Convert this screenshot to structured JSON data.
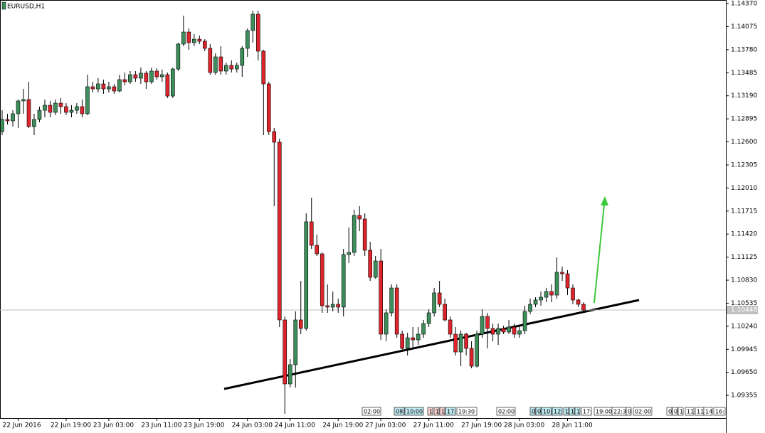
{
  "chart_data": {
    "type": "candlestick",
    "title": "EURUSD,H1",
    "ylim": [
      1.09065,
      1.14416
    ],
    "yticks": [
      {
        "value": 1.1437,
        "label": "1.14370"
      },
      1.14075,
      {
        "value": 1.1378,
        "label": "1.13780"
      },
      1.13485,
      {
        "value": 1.1319,
        "label": "1.13190"
      },
      1.12895,
      {
        "value": 1.126,
        "label": "1.12600"
      },
      1.12305,
      {
        "value": 1.1201,
        "label": "1.12010"
      },
      1.11715,
      {
        "value": 1.1142,
        "label": "1.11420"
      },
      1.11125,
      {
        "value": 1.1083,
        "label": "1.10830"
      },
      1.10535,
      {
        "value": 1.1024,
        "label": "1.10240"
      },
      1.09945,
      {
        "value": 1.0965,
        "label": "1.09650"
      },
      1.09355
    ],
    "current_price": 1.10448,
    "colors": {
      "up": "#3c8f5b",
      "down": "#e0242c"
    },
    "categories": [
      null,
      null,
      null,
      "22 Jun 2016",
      null,
      null,
      null,
      null,
      null,
      null,
      null,
      null,
      "22 Jun 19:00",
      null,
      null,
      null,
      null,
      null,
      null,
      null,
      "23 Jun 03:00",
      null,
      null,
      null,
      null,
      null,
      null,
      null,
      null,
      "23 Jun 11:00",
      null,
      null,
      null,
      null,
      null,
      null,
      null,
      "23 Jun 19:00",
      null,
      null,
      null,
      null,
      null,
      null,
      null,
      null,
      "24 Jun 03:00",
      null,
      null,
      null,
      null,
      null,
      null,
      null,
      "24 Jun 11:00",
      null,
      null,
      null,
      null,
      null,
      null,
      null,
      null,
      "24 Jun 19:00",
      null,
      null,
      null,
      null,
      null,
      null,
      null,
      "27 Jun 03:00",
      null,
      null,
      null,
      null,
      null,
      null,
      null,
      null,
      "27 Jun 11:00",
      null,
      null,
      null,
      null,
      null,
      null,
      null,
      null,
      "27 Jun 19:00",
      null,
      null,
      null,
      null,
      null,
      null,
      null,
      "28 Jun 03:00",
      null,
      null,
      null,
      null,
      null,
      null,
      null,
      null,
      "28 Jun 11:00",
      null,
      null,
      null
    ],
    "open": [
      1.12732,
      1.12887,
      1.12869,
      1.1296,
      1.13124,
      1.13142,
      1.12796,
      1.12887,
      1.13005,
      1.13069,
      1.12978,
      1.13096,
      1.13051,
      1.12978,
      1.13005,
      1.13051,
      1.1296,
      1.13306,
      1.13278,
      1.13342,
      1.13278,
      1.13306,
      1.13251,
      1.13397,
      1.13369,
      1.1346,
      1.13415,
      1.13479,
      1.13369,
      1.13506,
      1.13433,
      1.1346,
      1.13187,
      1.13533,
      1.13852,
      1.14006,
      1.1387,
      1.13915,
      1.13888,
      1.13797,
      1.13488,
      1.13688,
      1.13506,
      1.13579,
      1.13533,
      1.13579,
      1.13797,
      1.14025,
      1.14234,
      1.13761,
      1.13342,
      1.12732,
      1.12596,
      1.10321,
      1.09502,
      1.09748,
      1.10321,
      1.10212,
      1.11577,
      1.11276,
      1.11167,
      1.10503,
      1.10485,
      1.10521,
      1.10485,
      1.11158,
      1.11185,
      1.11659,
      1.11613,
      1.11213,
      1.10867,
      1.11076,
      1.10139,
      1.10412,
      1.1073,
      1.10139,
      1.09957,
      1.10093,
      1.10066,
      1.10139,
      1.10275,
      1.10412,
      1.10667,
      1.10521,
      1.10321,
      1.10139,
      1.09911,
      1.10139,
      1.09957,
      1.09729,
      1.10139,
      1.10366,
      1.10212,
      1.10139,
      1.10212,
      1.10166,
      1.1023,
      1.10139,
      1.10184,
      1.1043,
      1.10521,
      1.10576,
      1.10612,
      1.10685,
      1.10639,
      1.10931,
      1.10912,
      1.1073,
      1.10576,
      1.10521
    ],
    "high": [
      1.13005,
      1.1296,
      1.13005,
      1.13142,
      1.13278,
      1.13369,
      1.1296,
      1.13051,
      1.13142,
      1.13124,
      1.13142,
      1.1316,
      1.13096,
      1.13069,
      1.13096,
      1.13142,
      1.1346,
      1.13369,
      1.13415,
      1.13397,
      1.13369,
      1.13342,
      1.1346,
      1.13488,
      1.13506,
      1.13506,
      1.13551,
      1.13506,
      1.13551,
      1.13542,
      1.13524,
      1.13488,
      1.13551,
      1.1387,
      1.14216,
      1.14052,
      1.13979,
      1.13961,
      1.13915,
      1.13852,
      1.13733,
      1.13824,
      1.13615,
      1.13642,
      1.13615,
      1.13824,
      1.14052,
      1.14279,
      1.14279,
      1.13779,
      1.13369,
      1.12778,
      1.12641,
      1.10366,
      1.0982,
      1.1043,
      1.10821,
      1.11686,
      1.11886,
      1.11413,
      1.11185,
      1.10776,
      1.10685,
      1.10594,
      1.11231,
      1.11504,
      1.11731,
      1.11777,
      1.11686,
      1.11322,
      1.1114,
      1.11231,
      1.10457,
      1.10776,
      1.10776,
      1.10184,
      1.10157,
      1.1023,
      1.1023,
      1.10321,
      1.10457,
      1.1073,
      1.10821,
      1.10594,
      1.10366,
      1.1023,
      1.10184,
      1.10157,
      1.10048,
      1.10184,
      1.10457,
      1.10412,
      1.10275,
      1.10275,
      1.10248,
      1.10321,
      1.10275,
      1.10248,
      1.10503,
      1.10594,
      1.10612,
      1.10685,
      1.1073,
      1.10776,
      1.11122,
      1.11003,
      1.10958,
      1.10776,
      1.10594,
      1.10548
    ],
    "low": [
      1.12687,
      1.12823,
      1.12796,
      1.12778,
      1.1296,
      1.12778,
      1.12687,
      1.12851,
      1.12914,
      1.12914,
      1.12942,
      1.1296,
      1.12942,
      1.12914,
      1.1296,
      1.12914,
      1.12942,
      1.13233,
      1.13233,
      1.13215,
      1.13233,
      1.13215,
      1.13233,
      1.13324,
      1.13342,
      1.13369,
      1.13342,
      1.13278,
      1.13342,
      1.13397,
      1.13369,
      1.1316,
      1.1316,
      1.13506,
      1.13824,
      1.13779,
      1.13824,
      1.13852,
      1.13761,
      1.1346,
      1.1346,
      1.1346,
      1.1346,
      1.13488,
      1.13488,
      1.13433,
      1.13688,
      1.1387,
      1.13642,
      1.12687,
      1.12687,
      1.11777,
      1.1023,
      1.0912,
      1.09456,
      1.09456,
      1.10139,
      1.10184,
      1.11231,
      1.1114,
      1.10412,
      1.10412,
      1.1043,
      1.10412,
      1.10366,
      1.11049,
      1.1114,
      1.11458,
      1.1114,
      1.10821,
      1.10849,
      1.10066,
      1.10048,
      1.10366,
      1.10093,
      1.09911,
      1.09866,
      1.09957,
      1.10002,
      1.10093,
      1.1023,
      1.10366,
      1.10485,
      1.10303,
      1.10093,
      1.09866,
      1.09729,
      1.09866,
      1.09702,
      1.09711,
      1.10093,
      1.09957,
      1.10048,
      1.10002,
      1.10139,
      1.10139,
      1.10093,
      1.10093,
      1.10139,
      1.10394,
      1.10485,
      1.10503,
      1.10548,
      1.10548,
      1.10594,
      1.10821,
      1.10639,
      1.10521,
      1.10485,
      1.10412
    ],
    "close": [
      1.12887,
      1.12869,
      1.1296,
      1.13124,
      1.13142,
      1.12796,
      1.12887,
      1.13005,
      1.13069,
      1.12978,
      1.13096,
      1.13051,
      1.12978,
      1.13005,
      1.13051,
      1.1296,
      1.13306,
      1.13278,
      1.13342,
      1.13278,
      1.13306,
      1.13251,
      1.13397,
      1.13369,
      1.1346,
      1.13415,
      1.13479,
      1.13369,
      1.13506,
      1.13433,
      1.1346,
      1.13187,
      1.13533,
      1.13852,
      1.14006,
      1.1387,
      1.13915,
      1.13888,
      1.13797,
      1.13488,
      1.13688,
      1.13506,
      1.13579,
      1.13533,
      1.13579,
      1.13797,
      1.14025,
      1.14234,
      1.13761,
      1.13342,
      1.12732,
      1.12596,
      1.10321,
      1.09502,
      1.09748,
      1.10321,
      1.10212,
      1.11577,
      1.11276,
      1.11167,
      1.10503,
      1.10485,
      1.10521,
      1.10485,
      1.11158,
      1.11185,
      1.11659,
      1.11613,
      1.11213,
      1.10867,
      1.11076,
      1.10139,
      1.10412,
      1.1073,
      1.10139,
      1.09957,
      1.10093,
      1.10066,
      1.10139,
      1.10275,
      1.10412,
      1.10667,
      1.10521,
      1.10321,
      1.10139,
      1.09911,
      1.10139,
      1.09957,
      1.09729,
      1.10139,
      1.10366,
      1.10212,
      1.10139,
      1.10212,
      1.10166,
      1.1023,
      1.10139,
      1.10184,
      1.1043,
      1.10521,
      1.10576,
      1.10612,
      1.10685,
      1.10639,
      1.10931,
      1.10912,
      1.1073,
      1.10576,
      1.10521,
      1.10448
    ],
    "time_markers": [
      "02:00",
      "08:",
      "10:00",
      "1",
      "1",
      "1",
      "17:",
      "19:30",
      "02:00",
      "0",
      "0",
      "10:",
      "12:",
      "1",
      "1",
      "1",
      "17:",
      "19:00",
      "22:3",
      "0",
      "02:00",
      "0",
      "0",
      "1",
      "11",
      "11",
      "14",
      "16:"
    ]
  }
}
